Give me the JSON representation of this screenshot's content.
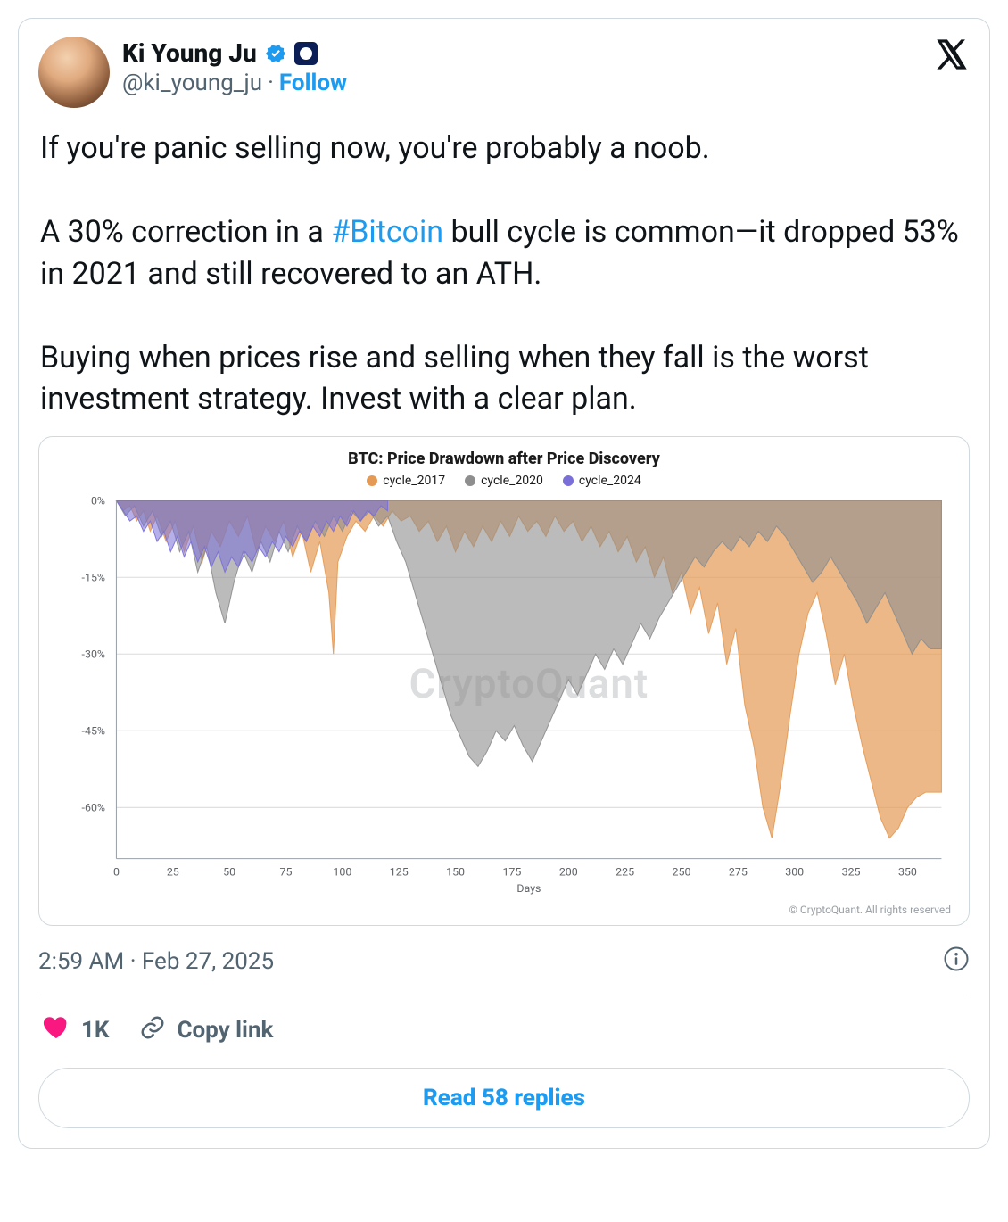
{
  "colors": {
    "text": "#0f1419",
    "muted": "#536471",
    "link": "#1d9bf0",
    "border": "#cfd9de",
    "heart": "#f91880",
    "verified": "#1d9bf0"
  },
  "user": {
    "display_name": "Ki Young Ju",
    "handle": "@ki_young_ju",
    "verified": true,
    "follow_label": "Follow"
  },
  "tweet": {
    "text_before_hashtag": "If you're panic selling now, you're probably a noob.\n\nA 30% correction in a ",
    "hashtag": "#Bitcoin",
    "text_after_hashtag": " bull cycle is common—it dropped 53% in 2021 and still recovered to an ATH.\n\nBuying when prices rise and selling when they fall is the worst investment strategy. Invest with a clear plan."
  },
  "timestamp": "2:59 AM · Feb 27, 2025",
  "actions": {
    "like_count": "1K",
    "copy_link_label": "Copy link",
    "read_replies_label": "Read 58 replies"
  },
  "chart": {
    "type": "area",
    "title": "BTC: Price Drawdown after Price Discovery",
    "xlabel": "Days",
    "watermark": "CryptoQuant",
    "copyright": "© CryptoQuant. All rights reserved",
    "background_color": "#ffffff",
    "grid_color": "#dcdcdc",
    "axis_color": "#9aa0a6",
    "title_fontsize": 18,
    "label_fontsize": 12,
    "tick_fontsize": 12,
    "xlim": [
      0,
      365
    ],
    "ylim": [
      -70,
      0
    ],
    "ytick_step": 15,
    "yticks": [
      0,
      -15,
      -30,
      -45,
      -60
    ],
    "xtick_step": 25,
    "xticks": [
      0,
      25,
      50,
      75,
      100,
      125,
      150,
      175,
      200,
      225,
      250,
      275,
      300,
      325,
      350
    ],
    "legend_items": [
      {
        "label": "cycle_2017",
        "color": "#e49a54"
      },
      {
        "label": "cycle_2020",
        "color": "#8e8e8e"
      },
      {
        "label": "cycle_2024",
        "color": "#7a6fd8"
      }
    ],
    "series": {
      "cycle_2017": {
        "color": "#e49a54",
        "fill_opacity": 0.7,
        "points": [
          [
            0,
            0
          ],
          [
            3,
            -2
          ],
          [
            6,
            -1
          ],
          [
            9,
            -4
          ],
          [
            12,
            -2
          ],
          [
            15,
            -6
          ],
          [
            18,
            -3
          ],
          [
            22,
            -8
          ],
          [
            26,
            -4
          ],
          [
            30,
            -10
          ],
          [
            34,
            -5
          ],
          [
            38,
            -12
          ],
          [
            42,
            -6
          ],
          [
            46,
            -9
          ],
          [
            50,
            -4
          ],
          [
            54,
            -7
          ],
          [
            58,
            -3
          ],
          [
            62,
            -10
          ],
          [
            66,
            -5
          ],
          [
            70,
            -8
          ],
          [
            74,
            -4
          ],
          [
            78,
            -11
          ],
          [
            82,
            -6
          ],
          [
            86,
            -14
          ],
          [
            90,
            -8
          ],
          [
            94,
            -18
          ],
          [
            96,
            -30
          ],
          [
            98,
            -12
          ],
          [
            102,
            -7
          ],
          [
            106,
            -4
          ],
          [
            110,
            -6
          ],
          [
            114,
            -3
          ],
          [
            118,
            -5
          ],
          [
            122,
            -2
          ],
          [
            126,
            -4
          ],
          [
            130,
            -3
          ],
          [
            134,
            -6
          ],
          [
            138,
            -4
          ],
          [
            142,
            -8
          ],
          [
            146,
            -5
          ],
          [
            150,
            -10
          ],
          [
            154,
            -6
          ],
          [
            158,
            -9
          ],
          [
            162,
            -5
          ],
          [
            166,
            -8
          ],
          [
            170,
            -4
          ],
          [
            174,
            -7
          ],
          [
            178,
            -3
          ],
          [
            182,
            -6
          ],
          [
            186,
            -4
          ],
          [
            190,
            -7
          ],
          [
            194,
            -3
          ],
          [
            198,
            -6
          ],
          [
            202,
            -4
          ],
          [
            206,
            -8
          ],
          [
            210,
            -5
          ],
          [
            214,
            -9
          ],
          [
            218,
            -6
          ],
          [
            222,
            -10
          ],
          [
            226,
            -7
          ],
          [
            230,
            -12
          ],
          [
            234,
            -9
          ],
          [
            238,
            -15
          ],
          [
            242,
            -11
          ],
          [
            246,
            -18
          ],
          [
            250,
            -14
          ],
          [
            254,
            -22
          ],
          [
            258,
            -17
          ],
          [
            262,
            -26
          ],
          [
            266,
            -20
          ],
          [
            270,
            -32
          ],
          [
            274,
            -25
          ],
          [
            278,
            -40
          ],
          [
            282,
            -48
          ],
          [
            286,
            -60
          ],
          [
            290,
            -66
          ],
          [
            294,
            -55
          ],
          [
            298,
            -42
          ],
          [
            302,
            -30
          ],
          [
            306,
            -22
          ],
          [
            310,
            -18
          ],
          [
            314,
            -26
          ],
          [
            318,
            -36
          ],
          [
            322,
            -30
          ],
          [
            326,
            -40
          ],
          [
            330,
            -48
          ],
          [
            334,
            -55
          ],
          [
            338,
            -62
          ],
          [
            342,
            -66
          ],
          [
            346,
            -64
          ],
          [
            350,
            -60
          ],
          [
            354,
            -58
          ],
          [
            358,
            -57
          ],
          [
            362,
            -57
          ],
          [
            365,
            -57
          ]
        ]
      },
      "cycle_2020": {
        "color": "#8e8e8e",
        "fill_opacity": 0.6,
        "points": [
          [
            0,
            0
          ],
          [
            4,
            -3
          ],
          [
            8,
            -1
          ],
          [
            12,
            -5
          ],
          [
            16,
            -2
          ],
          [
            20,
            -7
          ],
          [
            24,
            -4
          ],
          [
            28,
            -10
          ],
          [
            32,
            -6
          ],
          [
            36,
            -14
          ],
          [
            40,
            -9
          ],
          [
            44,
            -18
          ],
          [
            48,
            -24
          ],
          [
            52,
            -16
          ],
          [
            56,
            -10
          ],
          [
            60,
            -14
          ],
          [
            64,
            -8
          ],
          [
            68,
            -12
          ],
          [
            72,
            -6
          ],
          [
            76,
            -10
          ],
          [
            80,
            -5
          ],
          [
            84,
            -8
          ],
          [
            88,
            -4
          ],
          [
            92,
            -7
          ],
          [
            96,
            -3
          ],
          [
            100,
            -6
          ],
          [
            104,
            -2
          ],
          [
            108,
            -4
          ],
          [
            112,
            -2
          ],
          [
            116,
            -5
          ],
          [
            120,
            -3
          ],
          [
            124,
            -8
          ],
          [
            128,
            -12
          ],
          [
            132,
            -18
          ],
          [
            136,
            -24
          ],
          [
            140,
            -30
          ],
          [
            144,
            -36
          ],
          [
            148,
            -42
          ],
          [
            152,
            -46
          ],
          [
            156,
            -50
          ],
          [
            160,
            -52
          ],
          [
            164,
            -49
          ],
          [
            168,
            -45
          ],
          [
            172,
            -47
          ],
          [
            176,
            -44
          ],
          [
            180,
            -48
          ],
          [
            184,
            -51
          ],
          [
            188,
            -47
          ],
          [
            192,
            -43
          ],
          [
            196,
            -39
          ],
          [
            200,
            -35
          ],
          [
            204,
            -38
          ],
          [
            208,
            -34
          ],
          [
            212,
            -30
          ],
          [
            216,
            -33
          ],
          [
            220,
            -29
          ],
          [
            224,
            -32
          ],
          [
            228,
            -28
          ],
          [
            232,
            -24
          ],
          [
            236,
            -27
          ],
          [
            240,
            -23
          ],
          [
            244,
            -20
          ],
          [
            248,
            -17
          ],
          [
            252,
            -14
          ],
          [
            256,
            -11
          ],
          [
            260,
            -13
          ],
          [
            264,
            -10
          ],
          [
            268,
            -8
          ],
          [
            272,
            -10
          ],
          [
            276,
            -7
          ],
          [
            280,
            -9
          ],
          [
            284,
            -6
          ],
          [
            288,
            -8
          ],
          [
            292,
            -5
          ],
          [
            296,
            -7
          ],
          [
            300,
            -10
          ],
          [
            304,
            -13
          ],
          [
            308,
            -16
          ],
          [
            312,
            -14
          ],
          [
            316,
            -11
          ],
          [
            320,
            -14
          ],
          [
            324,
            -17
          ],
          [
            328,
            -20
          ],
          [
            332,
            -24
          ],
          [
            336,
            -21
          ],
          [
            340,
            -18
          ],
          [
            344,
            -22
          ],
          [
            348,
            -26
          ],
          [
            352,
            -30
          ],
          [
            356,
            -27
          ],
          [
            360,
            -29
          ],
          [
            365,
            -29
          ]
        ]
      },
      "cycle_2024": {
        "color": "#7a6fd8",
        "fill_opacity": 0.55,
        "points": [
          [
            0,
            0
          ],
          [
            3,
            -2
          ],
          [
            6,
            -4
          ],
          [
            9,
            -3
          ],
          [
            12,
            -6
          ],
          [
            15,
            -4
          ],
          [
            18,
            -8
          ],
          [
            21,
            -6
          ],
          [
            24,
            -10
          ],
          [
            27,
            -7
          ],
          [
            30,
            -11
          ],
          [
            33,
            -8
          ],
          [
            36,
            -12
          ],
          [
            39,
            -9
          ],
          [
            42,
            -13
          ],
          [
            45,
            -10
          ],
          [
            48,
            -14
          ],
          [
            51,
            -11
          ],
          [
            54,
            -13
          ],
          [
            57,
            -10
          ],
          [
            60,
            -12
          ],
          [
            63,
            -9
          ],
          [
            66,
            -11
          ],
          [
            69,
            -8
          ],
          [
            72,
            -10
          ],
          [
            75,
            -7
          ],
          [
            78,
            -9
          ],
          [
            81,
            -6
          ],
          [
            84,
            -8
          ],
          [
            87,
            -5
          ],
          [
            90,
            -7
          ],
          [
            93,
            -4
          ],
          [
            96,
            -6
          ],
          [
            99,
            -3
          ],
          [
            102,
            -5
          ],
          [
            105,
            -2
          ],
          [
            108,
            -4
          ],
          [
            111,
            -2
          ],
          [
            114,
            -3
          ],
          [
            117,
            -1
          ],
          [
            120,
            -2
          ]
        ]
      }
    }
  }
}
